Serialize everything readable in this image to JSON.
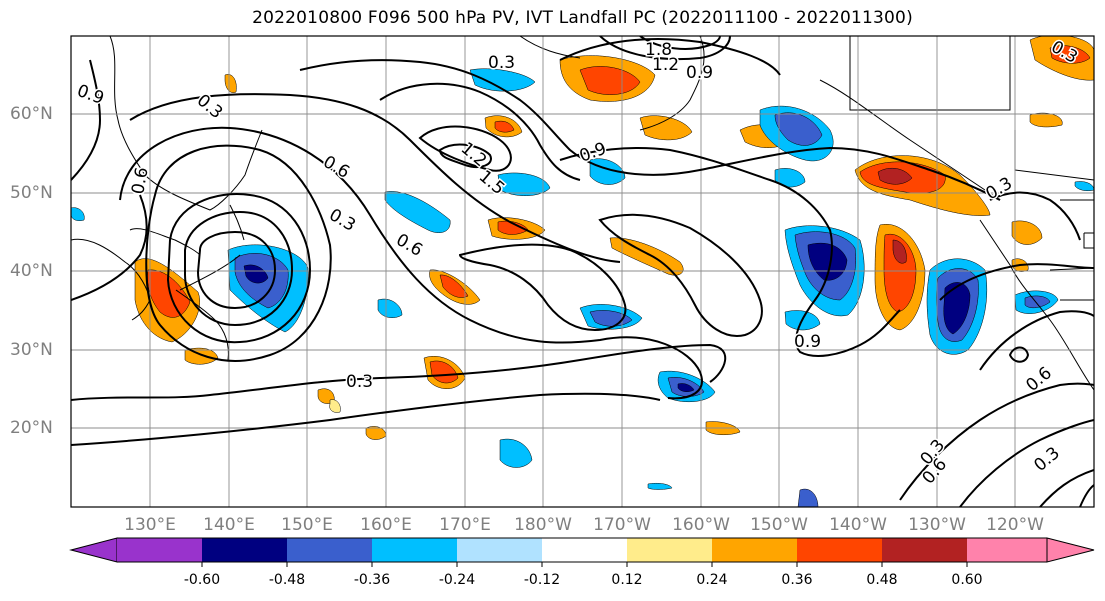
{
  "title": "2022010800 F096 500 hPa PV, IVT Landfall PC (2022011100 - 2022011300)",
  "map": {
    "lat_labels": [
      "60°N",
      "50°N",
      "40°N",
      "30°N",
      "20°N"
    ],
    "lon_labels": [
      "130°E",
      "140°E",
      "150°E",
      "160°E",
      "170°E",
      "180°W",
      "170°W",
      "160°W",
      "150°W",
      "140°W",
      "130°W",
      "120°W"
    ],
    "contour_labels": [
      "0.9",
      "0.3",
      "0.3",
      "1.8",
      "1.2",
      "0.9",
      "0.6",
      "1.2",
      "1.5",
      "0.9",
      "0.3",
      "0.6",
      "0.6",
      "0.3",
      "0.9",
      "0.3",
      "0.6",
      "0.3",
      "0.6",
      "0.3",
      "0.3"
    ]
  },
  "colorbar": {
    "tick_labels": [
      "-0.60",
      "-0.48",
      "-0.36",
      "-0.24",
      "-0.12",
      "0.12",
      "0.24",
      "0.36",
      "0.48",
      "0.60"
    ],
    "colors": [
      "#9933cc",
      "#000080",
      "#3a5fcd",
      "#00bfff",
      "#b0e2ff",
      "#ffffff",
      "#ffec8b",
      "#ffa500",
      "#ff4500",
      "#b22222",
      "#ff82ab"
    ]
  }
}
